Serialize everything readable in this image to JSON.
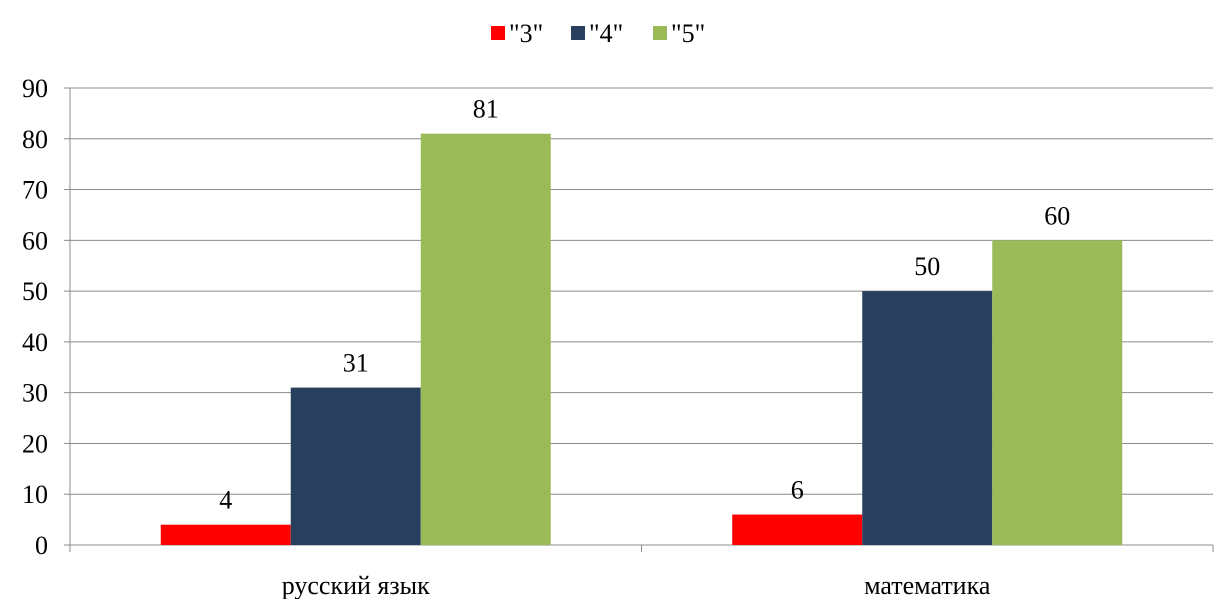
{
  "chart_data": {
    "type": "bar",
    "categories": [
      "русский язык",
      "математика"
    ],
    "series": [
      {
        "name": "\"3\"",
        "values": [
          4,
          6
        ],
        "color": "#ff0000"
      },
      {
        "name": "\"4\"",
        "values": [
          31,
          50
        ],
        "color": "#283f5e"
      },
      {
        "name": "\"5\"",
        "values": [
          81,
          60
        ],
        "color": "#9bbb59"
      }
    ],
    "ylim": [
      0,
      90
    ],
    "yticks": [
      0,
      10,
      20,
      30,
      40,
      50,
      60,
      70,
      80,
      90
    ],
    "grid": true,
    "legend": "top-center",
    "data_labels": true
  }
}
